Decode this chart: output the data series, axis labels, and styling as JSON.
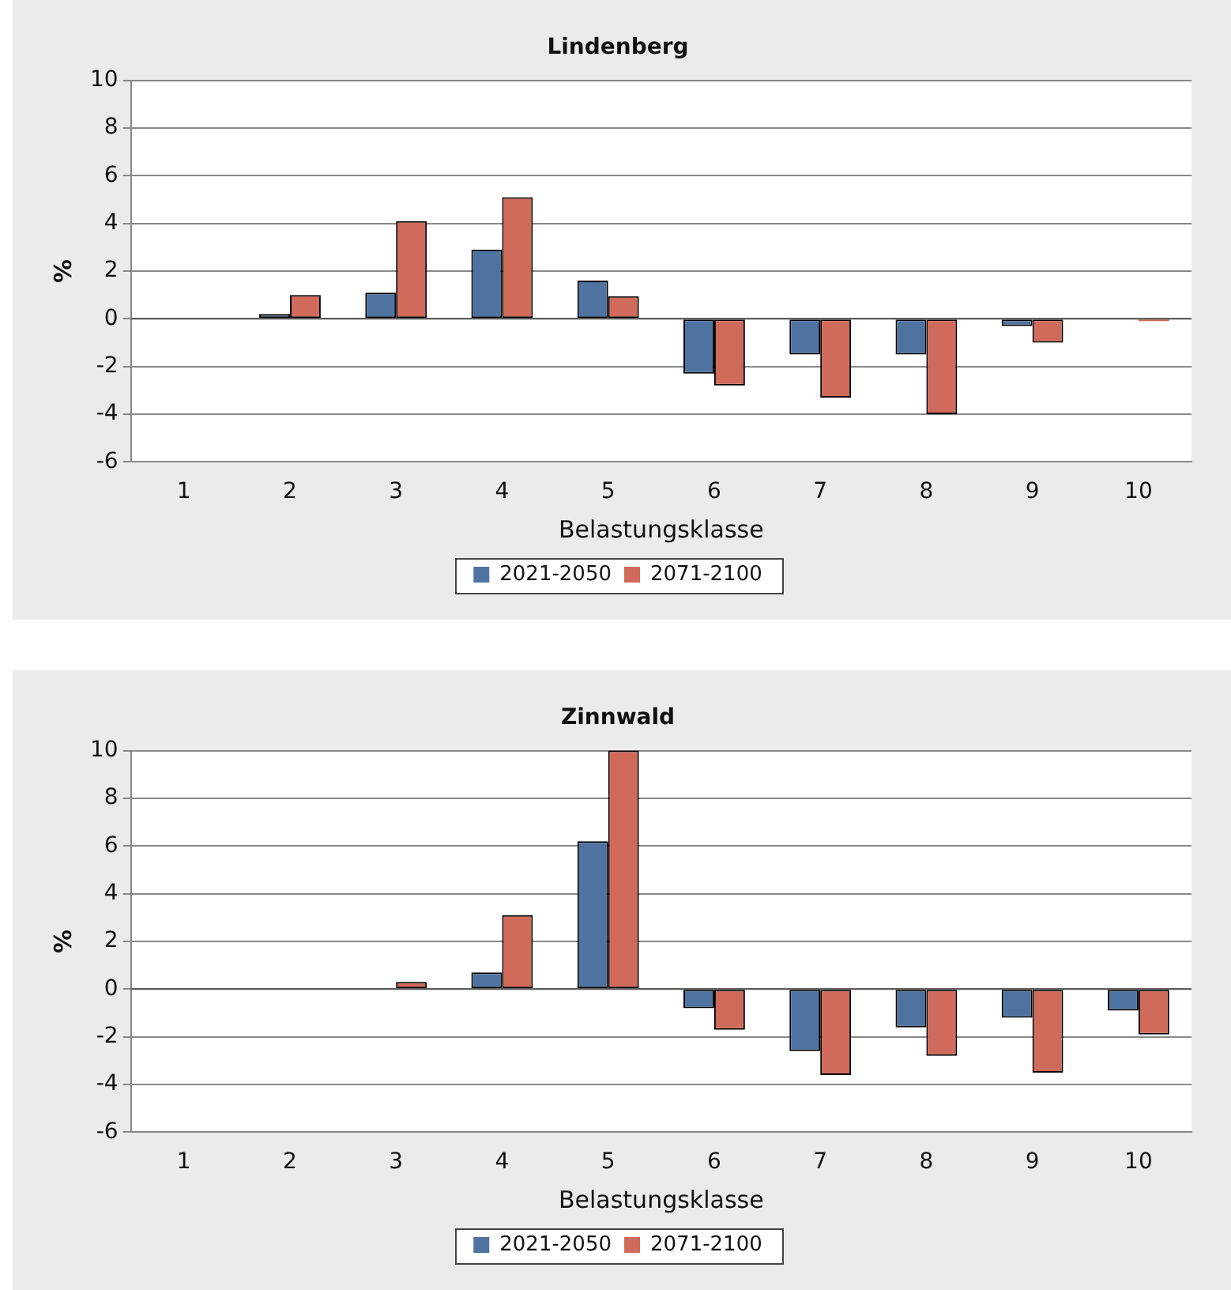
{
  "chart_data": [
    {
      "type": "bar",
      "title": "Lindenberg",
      "xlabel": "Belastungsklasse",
      "ylabel": "%",
      "categories": [
        "1",
        "2",
        "3",
        "4",
        "5",
        "6",
        "7",
        "8",
        "9",
        "10"
      ],
      "ylim": [
        -6,
        10
      ],
      "yticks": [
        -6,
        -4,
        -2,
        0,
        2,
        4,
        6,
        8,
        10
      ],
      "grid": "y",
      "legend": "bottom",
      "series": [
        {
          "name": "2021-2050",
          "color": "#4f73a0",
          "values": [
            0,
            0.2,
            1.1,
            2.9,
            1.6,
            -2.3,
            -1.5,
            -1.5,
            -0.3,
            null
          ]
        },
        {
          "name": "2071-2100",
          "color": "#d06a5a",
          "values": [
            0,
            1.0,
            4.1,
            5.1,
            0.95,
            -2.8,
            -3.3,
            -4.0,
            -1.0,
            -0.1
          ]
        }
      ]
    },
    {
      "type": "bar",
      "title": "Zinnwald",
      "xlabel": "Belastungsklasse",
      "ylabel": "%",
      "categories": [
        "1",
        "2",
        "3",
        "4",
        "5",
        "6",
        "7",
        "8",
        "9",
        "10"
      ],
      "ylim": [
        -6,
        10
      ],
      "yticks": [
        -6,
        -4,
        -2,
        0,
        2,
        4,
        6,
        8,
        10
      ],
      "grid": "y",
      "legend": "bottom",
      "series": [
        {
          "name": "2021-2050",
          "color": "#4f73a0",
          "values": [
            0,
            0,
            null,
            0.7,
            6.2,
            -0.8,
            -2.6,
            -1.6,
            -1.2,
            -0.9
          ]
        },
        {
          "name": "2071-2100",
          "color": "#d06a5a",
          "values": [
            0,
            0,
            0.3,
            3.1,
            10,
            -1.7,
            -3.6,
            -2.8,
            -3.5,
            -1.9
          ]
        }
      ]
    }
  ]
}
